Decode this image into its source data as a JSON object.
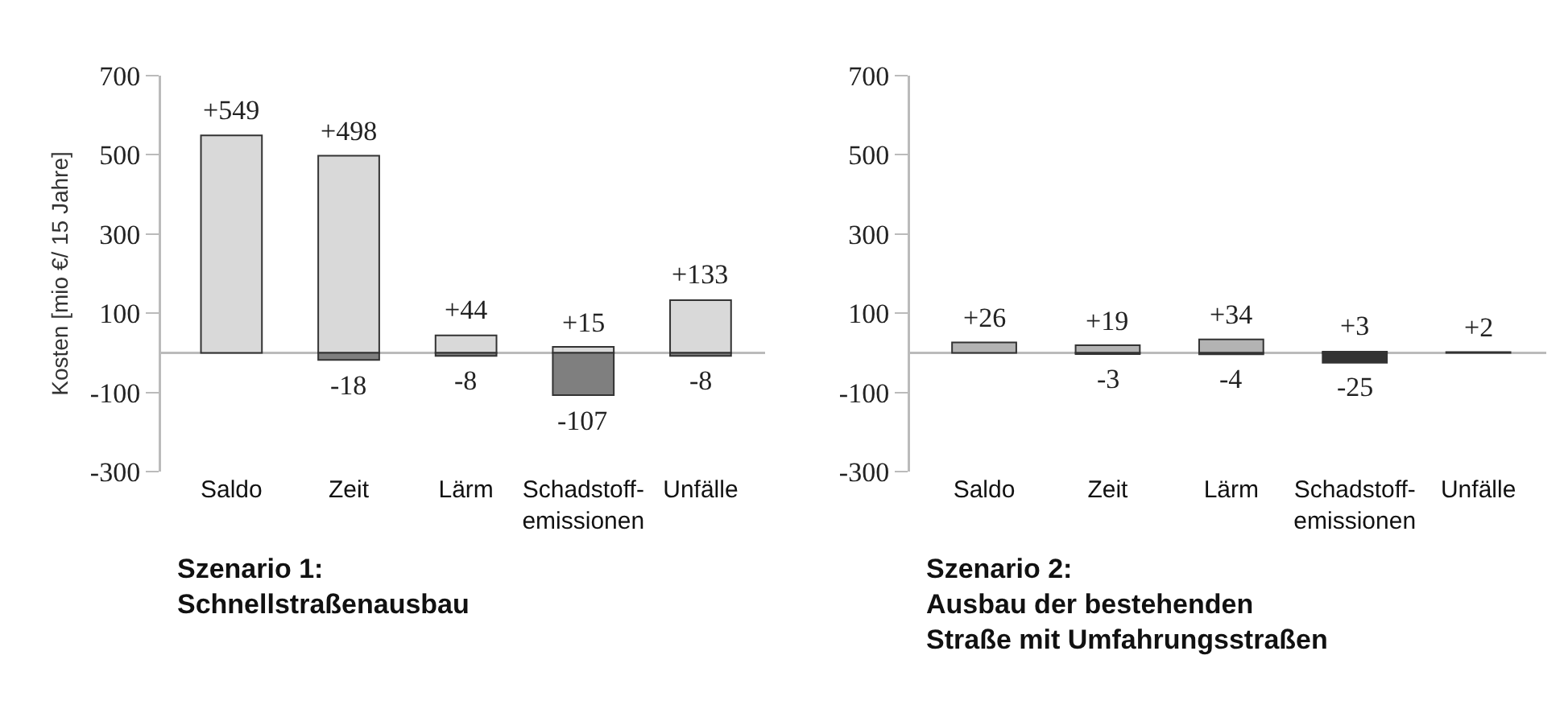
{
  "chart_data": [
    {
      "type": "bar",
      "stacked": true,
      "title": "Szenario 1:\nSchnellstraßenausbau",
      "ylabel": "Kosten [mio €/ 15 Jahre]",
      "categories": [
        "Saldo",
        "Zeit",
        "Lärm",
        "Schadstoff-\nemissionen",
        "Unfälle"
      ],
      "ylim": [
        -300,
        700
      ],
      "yticks": [
        -300,
        -100,
        100,
        300,
        500,
        700
      ],
      "series": [
        {
          "color": "#d9d9d9",
          "values": [
            549,
            498,
            44,
            15,
            133
          ],
          "value_labels": [
            "+549",
            "+498",
            "+44",
            "+15",
            "+133"
          ]
        },
        {
          "color": "#7f7f7f",
          "values": [
            null,
            -18,
            -8,
            -107,
            -8
          ],
          "value_labels": [
            null,
            "-18",
            "-8",
            "-107",
            "-8"
          ]
        }
      ]
    },
    {
      "type": "bar",
      "stacked": true,
      "title": "Szenario 2:\nAusbau der bestehenden\nStraße mit Umfahrungsstraßen",
      "categories": [
        "Saldo",
        "Zeit",
        "Lärm",
        "Schadstoff-\nemissionen",
        "Unfälle"
      ],
      "ylim": [
        -300,
        700
      ],
      "yticks": [
        -300,
        -100,
        100,
        300,
        500,
        700
      ],
      "series": [
        {
          "color": "#b3b3b3",
          "values": [
            26,
            19,
            34,
            3,
            2
          ],
          "value_labels": [
            "+26",
            "+19",
            "+34",
            "+3",
            "+2"
          ]
        },
        {
          "color": "#333333",
          "values": [
            null,
            -3,
            -4,
            -25,
            null
          ],
          "value_labels": [
            null,
            "-3",
            "-4",
            "-25",
            null
          ]
        }
      ]
    }
  ]
}
